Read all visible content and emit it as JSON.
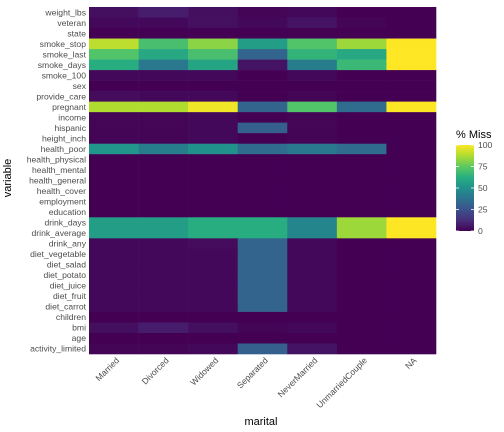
{
  "chart_data": {
    "type": "heatmap",
    "xlabel": "marital",
    "ylabel": "variable",
    "legend_title": "% Miss",
    "legend_position": "right",
    "legend_ticks": [
      100,
      75,
      50,
      25,
      0
    ],
    "value_range": [
      0,
      100
    ],
    "colormap": "viridis",
    "x": [
      "Married",
      "Divorced",
      "Widowed",
      "Separated",
      "NeverMarried",
      "UnmarriedCouple",
      "NA"
    ],
    "y": [
      "weight_lbs",
      "veteran",
      "state",
      "smoke_stop",
      "smoke_last",
      "smoke_days",
      "smoke_100",
      "sex",
      "provide_care",
      "pregnant",
      "income",
      "hispanic",
      "height_inch",
      "health_poor",
      "health_physical",
      "health_mental",
      "health_general",
      "health_cover",
      "employment",
      "education",
      "drink_days",
      "drink_average",
      "drink_any",
      "diet_vegetable",
      "diet_salad",
      "diet_potato",
      "diet_juice",
      "diet_fruit",
      "diet_carrot",
      "children",
      "bmi",
      "age",
      "activity_limited"
    ],
    "values": [
      [
        4,
        8,
        4,
        1,
        2,
        0,
        0
      ],
      [
        2,
        2,
        4,
        2,
        5,
        1,
        0
      ],
      [
        0,
        0,
        0,
        0,
        0,
        0,
        0
      ],
      [
        90,
        70,
        82,
        55,
        72,
        85,
        100
      ],
      [
        72,
        60,
        70,
        32,
        65,
        60,
        100
      ],
      [
        62,
        40,
        58,
        5,
        42,
        67,
        100
      ],
      [
        2,
        2,
        2,
        0,
        2,
        0,
        0
      ],
      [
        0,
        0,
        0,
        0,
        0,
        0,
        0
      ],
      [
        3,
        2,
        2,
        0,
        1,
        0,
        0
      ],
      [
        88,
        88,
        98,
        32,
        72,
        35,
        100
      ],
      [
        1,
        1,
        2,
        0,
        1,
        0,
        0
      ],
      [
        1,
        1,
        2,
        30,
        1,
        0,
        0
      ],
      [
        1,
        1,
        2,
        0,
        1,
        0,
        0
      ],
      [
        52,
        42,
        50,
        35,
        40,
        35,
        0
      ],
      [
        0,
        0,
        0,
        0,
        0,
        0,
        0
      ],
      [
        0,
        0,
        0,
        0,
        0,
        0,
        0
      ],
      [
        0,
        0,
        0,
        0,
        0,
        0,
        0
      ],
      [
        0,
        0,
        0,
        0,
        0,
        0,
        0
      ],
      [
        0,
        0,
        0,
        0,
        0,
        0,
        0
      ],
      [
        0,
        0,
        0,
        0,
        0,
        0,
        0
      ],
      [
        55,
        55,
        62,
        62,
        45,
        85,
        100
      ],
      [
        55,
        55,
        62,
        62,
        45,
        85,
        100
      ],
      [
        2,
        2,
        3,
        32,
        2,
        0,
        0
      ],
      [
        2,
        2,
        2,
        32,
        2,
        0,
        0
      ],
      [
        2,
        2,
        2,
        32,
        2,
        0,
        0
      ],
      [
        2,
        2,
        2,
        32,
        2,
        0,
        0
      ],
      [
        2,
        2,
        2,
        32,
        2,
        0,
        0
      ],
      [
        2,
        2,
        2,
        32,
        2,
        0,
        0
      ],
      [
        2,
        2,
        2,
        32,
        2,
        0,
        0
      ],
      [
        0,
        0,
        0,
        0,
        0,
        0,
        0
      ],
      [
        4,
        8,
        4,
        1,
        2,
        0,
        0
      ],
      [
        0,
        0,
        0,
        0,
        0,
        0,
        0
      ],
      [
        1,
        1,
        2,
        30,
        5,
        0,
        0
      ]
    ]
  }
}
